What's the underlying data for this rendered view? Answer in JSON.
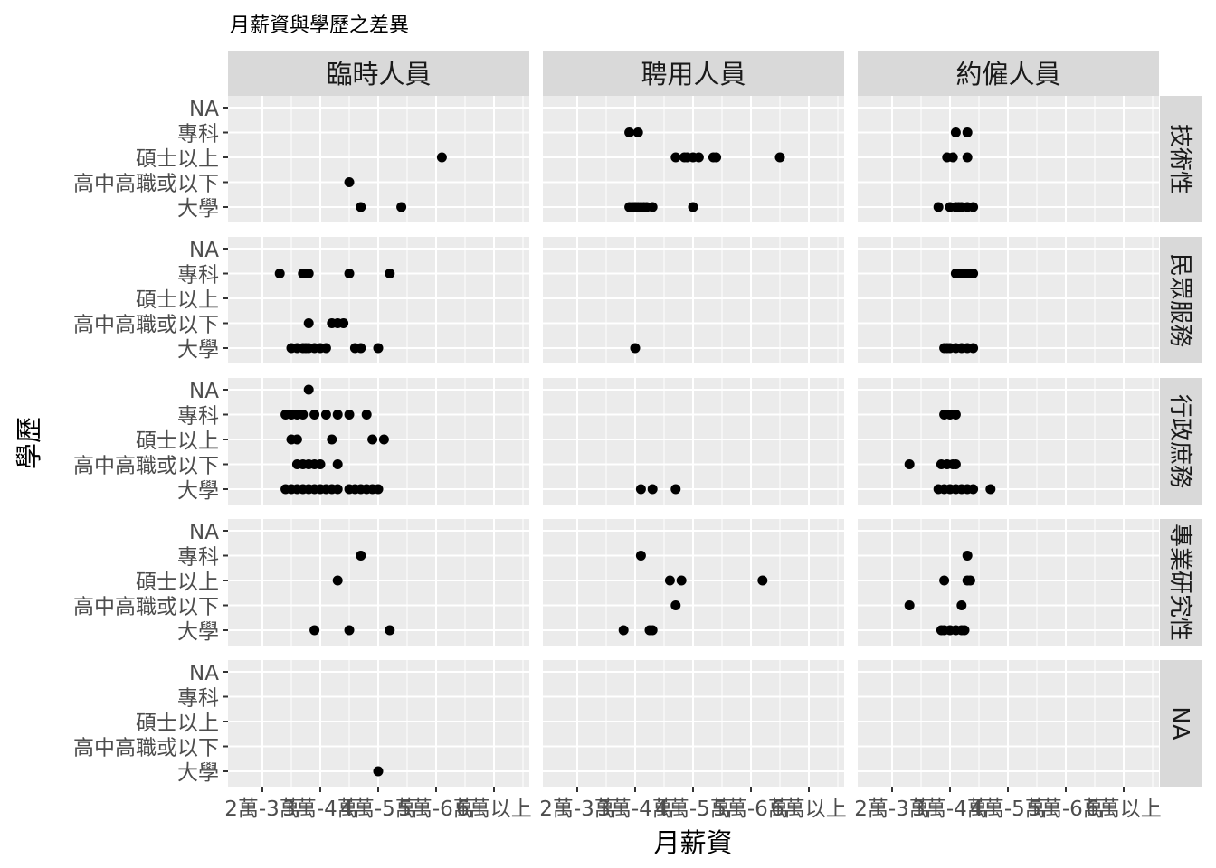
{
  "chart_data": {
    "type": "scatter",
    "title": "月薪資與學歷之差異",
    "xlabel": "月薪資",
    "ylabel": "學歷",
    "x_categories": [
      "2萬-3萬",
      "3萬-4萬",
      "4萬-5萬",
      "5萬-6萬",
      "6萬以上"
    ],
    "y_categories": [
      "大學",
      "高中高職或以下",
      "碩士以上",
      "專科",
      "NA"
    ],
    "col_facets": [
      "臨時人員",
      "聘用人員",
      "約僱人員"
    ],
    "row_facets": [
      "技術性",
      "民眾服務",
      "行政庶務",
      "專業研究性",
      "NA"
    ],
    "x_is_jittered": true,
    "grid": true,
    "colors": {
      "panel_bg": "#ebebeb",
      "strip_bg": "#d9d9d9",
      "grid": "#ffffff",
      "point": "#000000"
    },
    "panels": [
      {
        "row": 0,
        "col": 0,
        "points": [
          [
            1.7,
            1
          ],
          [
            1.5,
            2
          ],
          [
            2.4,
            1
          ],
          [
            3.1,
            3
          ]
        ]
      },
      {
        "row": 0,
        "col": 1,
        "points": [
          [
            0.9,
            1
          ],
          [
            1.0,
            1
          ],
          [
            1.1,
            1
          ],
          [
            1.3,
            1
          ],
          [
            1.2,
            1
          ],
          [
            1.0,
            1
          ],
          [
            1.05,
            1
          ],
          [
            1.15,
            1
          ],
          [
            0.95,
            1
          ],
          [
            2.0,
            1
          ],
          [
            1.05,
            4
          ],
          [
            0.9,
            4
          ],
          [
            1.7,
            3
          ],
          [
            1.9,
            3
          ],
          [
            1.85,
            3
          ],
          [
            2.1,
            3
          ],
          [
            2.35,
            3
          ],
          [
            2.4,
            3
          ],
          [
            2.0,
            3
          ],
          [
            3.5,
            3
          ]
        ]
      },
      {
        "row": 0,
        "col": 2,
        "points": [
          [
            0.8,
            1
          ],
          [
            1.0,
            1
          ],
          [
            1.1,
            1
          ],
          [
            1.2,
            1
          ],
          [
            1.3,
            1
          ],
          [
            1.4,
            1
          ],
          [
            1.15,
            1
          ],
          [
            1.05,
            3
          ],
          [
            0.95,
            3
          ],
          [
            1.3,
            3
          ],
          [
            1.1,
            4
          ],
          [
            1.3,
            4
          ]
        ]
      },
      {
        "row": 1,
        "col": 0,
        "points": [
          [
            0.5,
            1
          ],
          [
            0.6,
            1
          ],
          [
            0.7,
            1
          ],
          [
            0.9,
            1
          ],
          [
            1.1,
            1
          ],
          [
            1.6,
            1
          ],
          [
            1.7,
            1
          ],
          [
            2.0,
            1
          ],
          [
            0.8,
            1
          ],
          [
            1.0,
            1
          ],
          [
            0.75,
            1
          ],
          [
            0.8,
            2
          ],
          [
            1.2,
            2
          ],
          [
            1.3,
            2
          ],
          [
            1.4,
            2
          ],
          [
            0.7,
            4
          ],
          [
            0.3,
            4
          ],
          [
            1.5,
            4
          ],
          [
            0.8,
            4
          ],
          [
            2.2,
            4
          ]
        ]
      },
      {
        "row": 1,
        "col": 1,
        "points": [
          [
            1.0,
            1
          ]
        ]
      },
      {
        "row": 1,
        "col": 2,
        "points": [
          [
            0.9,
            1
          ],
          [
            1.0,
            1
          ],
          [
            1.1,
            1
          ],
          [
            1.2,
            1
          ],
          [
            1.3,
            1
          ],
          [
            1.4,
            1
          ],
          [
            0.95,
            1
          ],
          [
            1.1,
            4
          ],
          [
            1.2,
            4
          ],
          [
            1.4,
            4
          ],
          [
            1.3,
            4
          ]
        ]
      },
      {
        "row": 2,
        "col": 0,
        "points": [
          [
            0.4,
            1
          ],
          [
            0.5,
            1
          ],
          [
            0.6,
            1
          ],
          [
            0.7,
            1
          ],
          [
            0.8,
            1
          ],
          [
            0.9,
            1
          ],
          [
            1.0,
            1
          ],
          [
            1.1,
            1
          ],
          [
            1.2,
            1
          ],
          [
            1.3,
            1
          ],
          [
            1.5,
            1
          ],
          [
            1.6,
            1
          ],
          [
            1.7,
            1
          ],
          [
            1.8,
            1
          ],
          [
            1.9,
            1
          ],
          [
            2.0,
            1
          ],
          [
            0.6,
            2
          ],
          [
            0.8,
            2
          ],
          [
            1.0,
            2
          ],
          [
            1.3,
            2
          ],
          [
            0.7,
            2
          ],
          [
            0.9,
            2
          ],
          [
            0.5,
            3
          ],
          [
            0.6,
            3
          ],
          [
            1.2,
            3
          ],
          [
            1.9,
            3
          ],
          [
            2.1,
            3
          ],
          [
            0.5,
            4
          ],
          [
            0.7,
            4
          ],
          [
            0.9,
            4
          ],
          [
            1.1,
            4
          ],
          [
            1.3,
            4
          ],
          [
            1.5,
            4
          ],
          [
            1.8,
            4
          ],
          [
            0.4,
            4
          ],
          [
            0.6,
            4
          ],
          [
            0.8,
            5
          ]
        ]
      },
      {
        "row": 2,
        "col": 1,
        "points": [
          [
            1.1,
            1
          ],
          [
            1.3,
            1
          ],
          [
            1.7,
            1
          ]
        ]
      },
      {
        "row": 2,
        "col": 2,
        "points": [
          [
            0.8,
            1
          ],
          [
            0.9,
            1
          ],
          [
            1.0,
            1
          ],
          [
            1.1,
            1
          ],
          [
            1.2,
            1
          ],
          [
            1.3,
            1
          ],
          [
            1.4,
            1
          ],
          [
            1.7,
            1
          ],
          [
            0.85,
            2
          ],
          [
            0.95,
            2
          ],
          [
            1.05,
            2
          ],
          [
            1.1,
            2
          ],
          [
            0.3,
            2
          ],
          [
            1.1,
            4
          ],
          [
            1.0,
            4
          ],
          [
            0.9,
            4
          ]
        ]
      },
      {
        "row": 3,
        "col": 0,
        "points": [
          [
            0.9,
            1
          ],
          [
            1.5,
            1
          ],
          [
            2.2,
            1
          ],
          [
            1.3,
            3
          ],
          [
            1.7,
            4
          ]
        ]
      },
      {
        "row": 3,
        "col": 1,
        "points": [
          [
            0.8,
            1
          ],
          [
            1.3,
            1
          ],
          [
            1.25,
            1
          ],
          [
            1.1,
            4
          ],
          [
            1.6,
            3
          ],
          [
            1.8,
            3
          ],
          [
            1.7,
            2
          ],
          [
            3.2,
            3
          ]
        ]
      },
      {
        "row": 3,
        "col": 2,
        "points": [
          [
            0.9,
            1
          ],
          [
            1.0,
            1
          ],
          [
            1.1,
            1
          ],
          [
            1.2,
            1
          ],
          [
            1.25,
            1
          ],
          [
            0.85,
            1
          ],
          [
            0.3,
            2
          ],
          [
            1.2,
            2
          ],
          [
            0.9,
            3
          ],
          [
            1.3,
            3
          ],
          [
            1.35,
            3
          ],
          [
            1.3,
            4
          ]
        ]
      },
      {
        "row": 4,
        "col": 0,
        "points": [
          [
            2.0,
            1
          ]
        ]
      }
    ]
  }
}
